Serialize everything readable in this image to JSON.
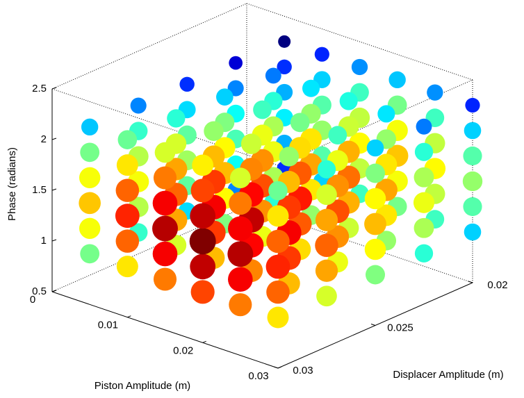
{
  "chart_data": {
    "type": "scatter3d",
    "xlabel": "Piston Amplitude (m)",
    "ylabel": "Displacer Amplitude (m)",
    "zlabel": "Phase (radians)",
    "x": [
      0.005,
      0.01,
      0.015,
      0.02,
      0.025,
      0.03
    ],
    "y": [
      0.02,
      0.0225,
      0.025,
      0.0275,
      0.03
    ],
    "z": [
      1,
      1.25,
      1.5,
      1.75,
      2,
      2.25
    ],
    "values": [
      [
        [
          22,
          34,
          40,
          34,
          22,
          6
        ],
        [
          30,
          42,
          48,
          42,
          30,
          14
        ],
        [
          38,
          50,
          56,
          50,
          38,
          22
        ],
        [
          46,
          58,
          64,
          58,
          46,
          30
        ],
        [
          52,
          64,
          70,
          64,
          52,
          36
        ]
      ],
      [
        [
          37,
          49,
          55,
          49,
          37,
          21
        ],
        [
          45,
          57,
          63,
          57,
          45,
          29
        ],
        [
          53,
          65,
          71,
          65,
          53,
          37
        ],
        [
          61,
          73,
          79,
          73,
          61,
          45
        ],
        [
          67,
          79,
          85,
          79,
          67,
          51
        ]
      ],
      [
        [
          47,
          59,
          65,
          59,
          47,
          31
        ],
        [
          55,
          67,
          73,
          67,
          55,
          39
        ],
        [
          63,
          75,
          81,
          75,
          63,
          47
        ],
        [
          71,
          83,
          89,
          83,
          71,
          55
        ],
        [
          77,
          89,
          95,
          89,
          77,
          61
        ]
      ],
      [
        [
          52,
          64,
          70,
          64,
          52,
          36
        ],
        [
          60,
          72,
          78,
          72,
          60,
          44
        ],
        [
          68,
          80,
          86,
          80,
          68,
          52
        ],
        [
          76,
          88,
          94,
          88,
          76,
          60
        ],
        [
          82,
          94,
          100,
          94,
          82,
          66
        ]
      ],
      [
        [
          47,
          59,
          65,
          59,
          47,
          31
        ],
        [
          55,
          67,
          73,
          67,
          55,
          39
        ],
        [
          63,
          75,
          81,
          75,
          63,
          47
        ],
        [
          71,
          83,
          89,
          83,
          71,
          55
        ],
        [
          77,
          89,
          95,
          89,
          77,
          61
        ]
      ],
      [
        [
          37,
          49,
          55,
          49,
          37,
          21
        ],
        [
          45,
          57,
          63,
          57,
          45,
          29
        ],
        [
          53,
          65,
          71,
          65,
          53,
          37
        ],
        [
          61,
          73,
          79,
          73,
          61,
          45
        ],
        [
          67,
          79,
          85,
          79,
          67,
          51
        ]
      ]
    ],
    "colormap": "jet",
    "xlim": [
      0,
      0.03
    ],
    "xticks": [
      0,
      0.01,
      0.02,
      0.03
    ],
    "ylim": [
      0.02,
      0.03
    ],
    "yticks": [
      0.02,
      0.025,
      0.03
    ],
    "zlim": [
      0.5,
      2.5
    ],
    "zticks": [
      0.5,
      1,
      1.5,
      2,
      2.5
    ]
  }
}
